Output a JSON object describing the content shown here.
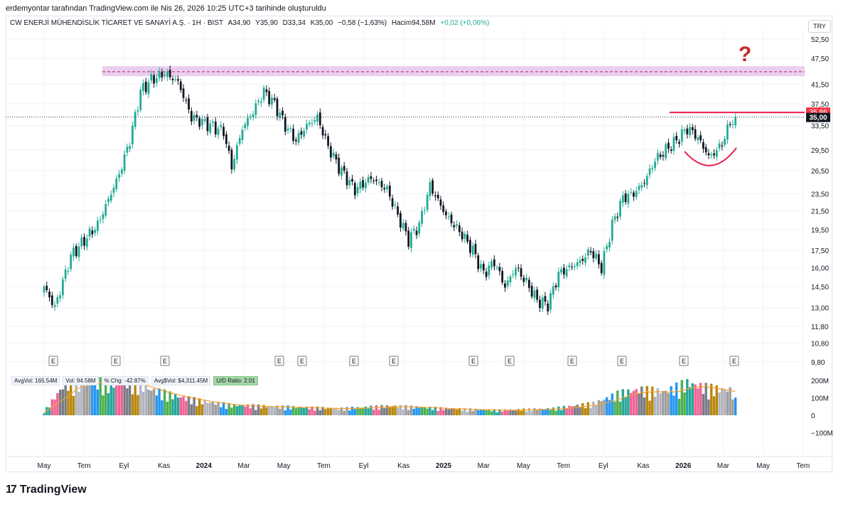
{
  "header": {
    "author_line": "erdemyontar tarafından TradingView.com ile Nis 26, 2026 10:25 UTC+3 tarihinde oluşturuldu"
  },
  "legend": {
    "symbol": "CW ENERJİ MÜHENDİSLİK TİCARET VE SANAYİ A.Ş. · 1H · BIST",
    "open": "A34,90",
    "high": "Y35,90",
    "low": "D33,34",
    "close": "K35,00",
    "change": "−0,58 (−1,63%)",
    "volume": "Hacim94,58M",
    "vol_change": "+0,02 (+0,06%)"
  },
  "currency": "TRY",
  "volume_badges": {
    "avg_vol": "AvgVol: 165.54M",
    "vol": "Vol: 94.58M",
    "pct_chg": "% Chg: -42.87%",
    "avg_dollar_vol": "Avg$Vol: $4,311.45M",
    "ud_ratio": "U/D Ratio: 2.01"
  },
  "brand": "TradingView",
  "annotation": "?",
  "colors": {
    "up": "#22ab94",
    "down": "#131722",
    "resistance": "#e91e4a",
    "zone_fill": "#e1bee7",
    "zone_line": "#c2185b",
    "ma": "#f7a234",
    "last_price_bg": "#131722",
    "current_bg": "#f23645"
  },
  "chart_data": {
    "type": "candlestick",
    "timeframe": "1H",
    "price_axis": {
      "scale": "log",
      "ylim": [
        9.8,
        52.5
      ],
      "ticks": [
        "52,50",
        "47,50",
        "41,50",
        "37,50",
        "33,50",
        "29,50",
        "26,50",
        "23,50",
        "21,50",
        "19,50",
        "17,50",
        "16,00",
        "14,50",
        "13,00",
        "11,80",
        "10,80",
        "9,80"
      ],
      "tick_values": [
        52.5,
        47.5,
        41.5,
        37.5,
        33.5,
        29.5,
        26.5,
        23.5,
        21.5,
        19.5,
        17.5,
        16.0,
        14.5,
        13.0,
        11.8,
        10.8,
        9.8
      ]
    },
    "volume_axis": {
      "ticks": [
        "200M",
        "100M",
        "0",
        "−100M"
      ],
      "tick_values": [
        200,
        100,
        0,
        -100
      ]
    },
    "x_axis": {
      "ticks": [
        "May",
        "Tem",
        "Eyl",
        "Kas",
        "2024",
        "Mar",
        "May",
        "Tem",
        "Eyl",
        "Kas",
        "2025",
        "Mar",
        "May",
        "Tem",
        "Eyl",
        "Kas",
        "2026",
        "Mar",
        "May",
        "Tem"
      ],
      "bold": [
        "2024",
        "2025",
        "2026"
      ]
    },
    "last_price": "35,00",
    "last_price_value": 35.0,
    "level_price": "35,86",
    "level_value": 35.86,
    "zone": [
      43.3,
      45.6
    ],
    "zone_midline": 44.3,
    "earnings_marker": "E",
    "earnings_count": 16,
    "anchors": [
      [
        0,
        14.5
      ],
      [
        4,
        13.0
      ],
      [
        10,
        17.0
      ],
      [
        20,
        20.0
      ],
      [
        28,
        26.0
      ],
      [
        32,
        31.0
      ],
      [
        36,
        40.0
      ],
      [
        40,
        42.5
      ],
      [
        45,
        44.0
      ],
      [
        50,
        42.0
      ],
      [
        55,
        35.0
      ],
      [
        62,
        33.5
      ],
      [
        67,
        32.5
      ],
      [
        70,
        27.0
      ],
      [
        74,
        33.0
      ],
      [
        78,
        36.0
      ],
      [
        82,
        40.0
      ],
      [
        86,
        37.5
      ],
      [
        90,
        33.5
      ],
      [
        94,
        31.0
      ],
      [
        98,
        33.5
      ],
      [
        102,
        35.0
      ],
      [
        106,
        30.0
      ],
      [
        110,
        27.0
      ],
      [
        116,
        24.0
      ],
      [
        122,
        25.5
      ],
      [
        128,
        24.0
      ],
      [
        132,
        21.0
      ],
      [
        136,
        18.5
      ],
      [
        140,
        20.0
      ],
      [
        144,
        24.5
      ],
      [
        150,
        21.0
      ],
      [
        156,
        19.0
      ],
      [
        160,
        17.5
      ],
      [
        164,
        15.5
      ],
      [
        168,
        16.5
      ],
      [
        172,
        14.5
      ],
      [
        176,
        16.0
      ],
      [
        180,
        14.8
      ],
      [
        184,
        13.5
      ],
      [
        188,
        13.2
      ],
      [
        192,
        15.5
      ],
      [
        196,
        16.0
      ],
      [
        200,
        16.5
      ],
      [
        204,
        17.5
      ],
      [
        208,
        16.0
      ],
      [
        212,
        20.0
      ],
      [
        216,
        23.0
      ],
      [
        220,
        23.5
      ],
      [
        224,
        25.0
      ],
      [
        228,
        28.0
      ],
      [
        232,
        29.5
      ],
      [
        236,
        31.0
      ],
      [
        240,
        33.0
      ],
      [
        243,
        32.0
      ],
      [
        246,
        30.0
      ],
      [
        248,
        28.5
      ],
      [
        250,
        29.0
      ],
      [
        253,
        30.5
      ],
      [
        256,
        34.0
      ],
      [
        258,
        35.0
      ]
    ],
    "volume_anchors": [
      [
        0,
        20
      ],
      [
        8,
        190
      ],
      [
        16,
        200
      ],
      [
        24,
        190
      ],
      [
        32,
        200
      ],
      [
        40,
        150
      ],
      [
        50,
        110
      ],
      [
        60,
        80
      ],
      [
        70,
        60
      ],
      [
        90,
        50
      ],
      [
        110,
        40
      ],
      [
        130,
        55
      ],
      [
        150,
        40
      ],
      [
        170,
        30
      ],
      [
        190,
        40
      ],
      [
        205,
        70
      ],
      [
        215,
        130
      ],
      [
        222,
        150
      ],
      [
        232,
        140
      ],
      [
        240,
        190
      ],
      [
        248,
        160
      ],
      [
        256,
        150
      ],
      [
        258,
        90
      ]
    ]
  }
}
